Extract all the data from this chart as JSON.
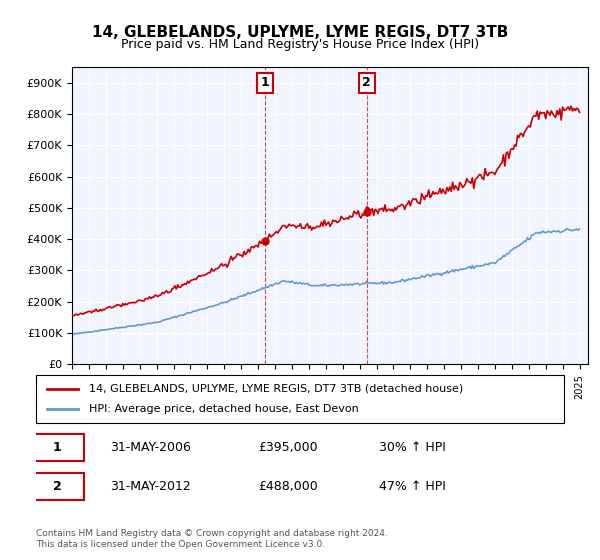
{
  "title": "14, GLEBELANDS, UPLYME, LYME REGIS, DT7 3TB",
  "subtitle": "Price paid vs. HM Land Registry's House Price Index (HPI)",
  "legend_line1": "14, GLEBELANDS, UPLYME, LYME REGIS, DT7 3TB (detached house)",
  "legend_line2": "HPI: Average price, detached house, East Devon",
  "transaction1_label": "1",
  "transaction1_date": "31-MAY-2006",
  "transaction1_price": "£395,000",
  "transaction1_hpi": "30% ↑ HPI",
  "transaction2_label": "2",
  "transaction2_date": "31-MAY-2012",
  "transaction2_price": "£488,000",
  "transaction2_hpi": "47% ↑ HPI",
  "footer": "Contains HM Land Registry data © Crown copyright and database right 2024.\nThis data is licensed under the Open Government Licence v3.0.",
  "red_color": "#cc0000",
  "blue_color": "#6699cc",
  "marker1_date": 2006.42,
  "marker1_price": 395000,
  "marker2_date": 2012.42,
  "marker2_price": 488000,
  "vline1_x": 2006.42,
  "vline2_x": 2012.42,
  "ylim_min": 0,
  "ylim_max": 950000,
  "xlim_min": 1995,
  "xlim_max": 2025.5,
  "background_color": "#f0f4ff",
  "plot_bg": "#f0f4ff"
}
